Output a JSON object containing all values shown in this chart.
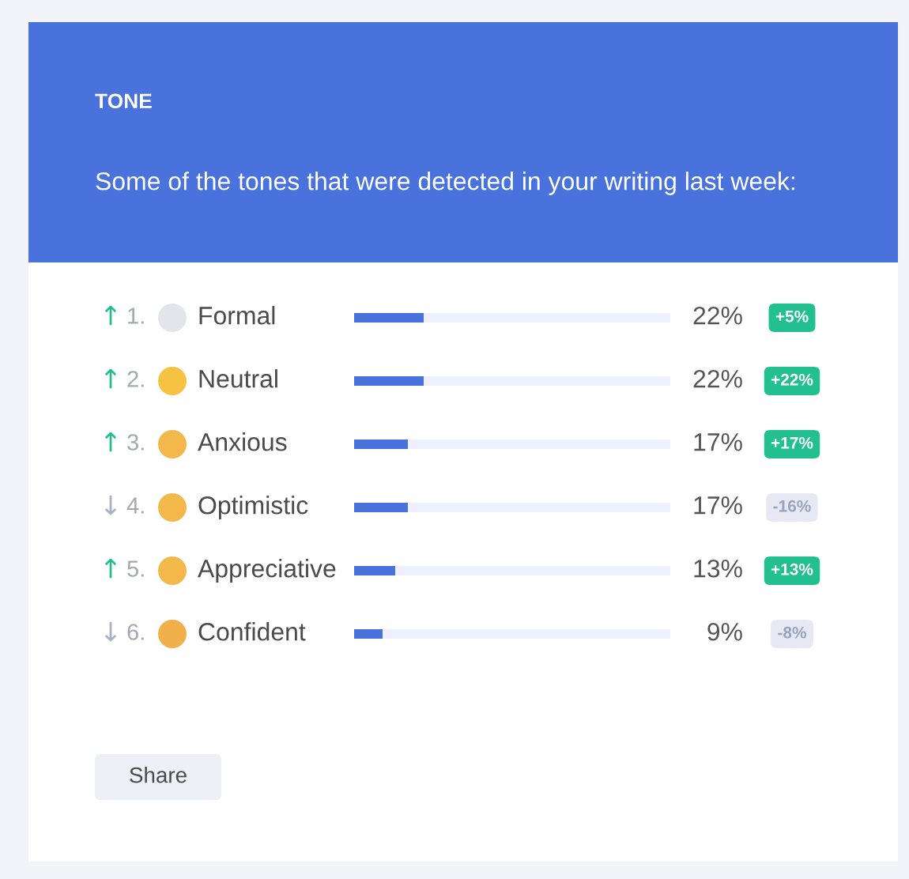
{
  "chart_data": {
    "type": "bar",
    "orientation": "horizontal",
    "stacked": true,
    "title": "TONE",
    "subtitle": "Some of the tones that were detected in your writing last week:",
    "categories": [
      "Formal",
      "Neutral",
      "Anxious",
      "Optimistic",
      "Appreciative",
      "Confident"
    ],
    "series": [
      {
        "color": "#4a72dc",
        "values": [
          22,
          22,
          17,
          17,
          13,
          9
        ],
        "value_labels": [
          "22%",
          "22%",
          "17%",
          "17%",
          "13%",
          "9%"
        ]
      },
      {
        "color": "#eef0fb",
        "values": [
          78,
          78,
          83,
          83,
          87,
          91
        ]
      },
      {
        "type": "other",
        "colors": [
          "#22c08f",
          "#22c08f",
          "#22c08f",
          "#a8b0c8",
          "#22c08f",
          "#a8b0c8"
        ],
        "values": [
          null,
          null,
          null,
          null,
          null,
          null
        ],
        "value_labels": [
          "↑",
          "↑",
          "↑",
          "↓",
          "↑",
          "↓"
        ]
      },
      {
        "type": "other",
        "colors": [
          "#22c08f",
          "#22c08f",
          "#22c08f",
          "#e6e9f3",
          "#22c08f",
          "#e6e9f3"
        ],
        "values": [
          null,
          null,
          null,
          null,
          null,
          null
        ],
        "value_labels": [
          "+5%",
          "+22%",
          "+17%",
          "-16%",
          "+13%",
          "-8%"
        ]
      }
    ],
    "xlim": [
      0,
      100
    ],
    "tick_labels": false,
    "annotations": [
      "1.",
      "2.",
      "3.",
      "4.",
      "5.",
      "6.",
      "Share"
    ]
  }
}
